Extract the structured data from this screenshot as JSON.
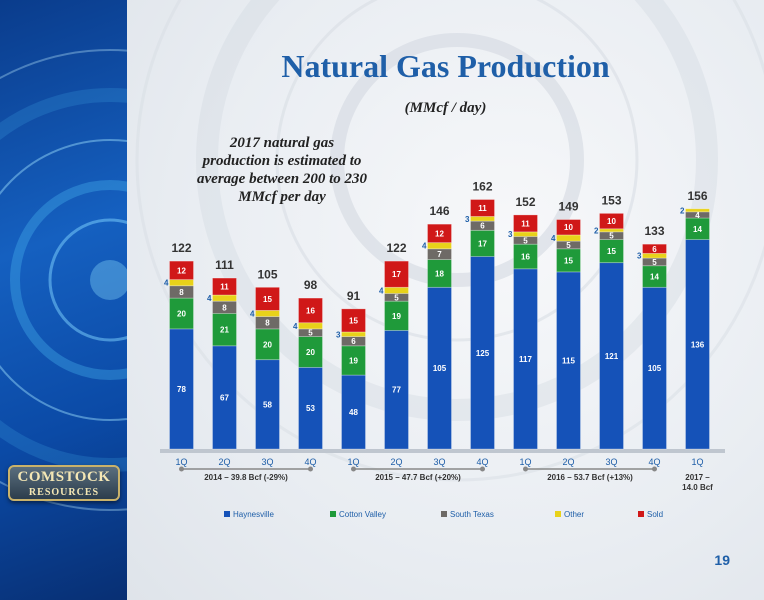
{
  "page": {
    "title": "Natural Gas Production",
    "subtitle": "(MMcf / day)",
    "note": "2017 natural gas production is estimated to average between 200 to 230 MMcf  per day",
    "page_number": "19",
    "logo_line1": "COMSTOCK",
    "logo_line2": "RESOURCES"
  },
  "colors": {
    "Haynesville": "#1552b8",
    "Cotton Valley": "#1f9a3a",
    "South Texas": "#6e6a66",
    "Other": "#e8d21a",
    "Sold": "#d01818"
  },
  "chart_data": {
    "type": "bar",
    "stacked": true,
    "categories": [
      "1Q",
      "2Q",
      "3Q",
      "4Q",
      "1Q",
      "2Q",
      "3Q",
      "4Q",
      "1Q",
      "2Q",
      "3Q",
      "4Q",
      "1Q"
    ],
    "totals": [
      122,
      111,
      105,
      98,
      91,
      122,
      146,
      162,
      152,
      149,
      153,
      133,
      156
    ],
    "series": [
      {
        "name": "Haynesville",
        "values": [
          78,
          67,
          58,
          53,
          48,
          77,
          105,
          125,
          117,
          115,
          121,
          105,
          136
        ]
      },
      {
        "name": "Cotton Valley",
        "values": [
          20,
          21,
          20,
          20,
          19,
          19,
          18,
          17,
          16,
          15,
          15,
          14,
          14
        ]
      },
      {
        "name": "South Texas",
        "values": [
          8,
          8,
          8,
          5,
          6,
          5,
          7,
          6,
          5,
          5,
          5,
          5,
          4
        ]
      },
      {
        "name": "Other",
        "values": [
          4,
          4,
          4,
          4,
          3,
          4,
          4,
          3,
          3,
          4,
          2,
          3,
          2
        ]
      },
      {
        "name": "Sold",
        "values": [
          12,
          11,
          15,
          16,
          15,
          17,
          12,
          11,
          11,
          10,
          10,
          6,
          0
        ]
      }
    ],
    "groups": [
      {
        "label": "2014 – 39.8 Bcf (-29%)",
        "from": 0,
        "to": 3
      },
      {
        "label": "2015 – 47.7 Bcf (+20%)",
        "from": 4,
        "to": 7
      },
      {
        "label": "2016 – 53.7 Bcf (+13%)",
        "from": 8,
        "to": 11
      },
      {
        "label": "2017 –\n14.0 Bcf",
        "from": 12,
        "to": 12
      }
    ],
    "legend": [
      "Haynesville",
      "Cotton Valley",
      "South Texas",
      "Other",
      "Sold"
    ],
    "legend_position": "bottom"
  }
}
